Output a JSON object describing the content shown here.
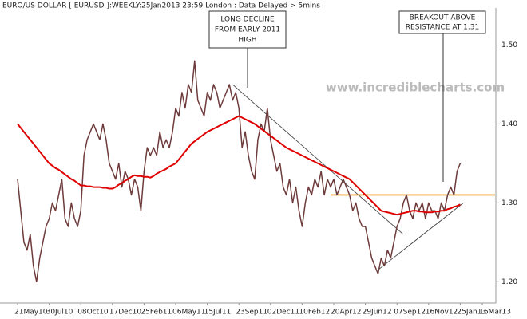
{
  "chart_data": {
    "type": "line",
    "title": "EURO/US DOLLAR [ EURUSD ]:WEEKLY:25Jan2013 23:59 London : Data Delayed > 5mins",
    "watermark": "www.incrediblecharts.com",
    "annotations": [
      {
        "lines": [
          "LONG DECLINE",
          "FROM EARLY 2011",
          "HIGH"
        ]
      },
      {
        "lines": [
          "BREAKOUT ABOVE",
          "RESISTANCE AT 1.31"
        ]
      }
    ],
    "categories": [
      "21May10",
      null,
      null,
      null,
      null,
      null,
      null,
      null,
      null,
      null,
      "30Jul10",
      null,
      null,
      null,
      null,
      null,
      null,
      null,
      null,
      null,
      "08Oct10",
      null,
      null,
      null,
      null,
      null,
      null,
      null,
      null,
      null,
      "17Dec10",
      null,
      null,
      null,
      null,
      null,
      null,
      null,
      null,
      null,
      "25Feb11",
      null,
      null,
      null,
      null,
      null,
      null,
      null,
      null,
      null,
      "06May11",
      null,
      null,
      null,
      null,
      null,
      null,
      null,
      null,
      null,
      "15Jul11",
      null,
      null,
      null,
      null,
      null,
      null,
      null,
      null,
      null,
      "23Sep11",
      null,
      null,
      null,
      null,
      null,
      null,
      null,
      null,
      null,
      "02Dec11",
      null,
      null,
      null,
      null,
      null,
      null,
      null,
      null,
      null,
      "10Feb12",
      null,
      null,
      null,
      null,
      null,
      null,
      null,
      null,
      null,
      "20Apr12",
      null,
      null,
      null,
      null,
      null,
      null,
      null,
      null,
      null,
      "29Jun12",
      null,
      null,
      null,
      null,
      null,
      null,
      null,
      null,
      null,
      "07Sep12",
      null,
      null,
      null,
      null,
      null,
      null,
      null,
      null,
      null,
      "16Nov12",
      null,
      null,
      null,
      null,
      null,
      null,
      null,
      null,
      null,
      "25Jan13",
      null,
      null,
      null,
      null,
      null,
      null,
      "16Mar13"
    ],
    "series": [
      {
        "color": "#6e3b3b",
        "values": [
          1.33,
          1.29,
          1.25,
          1.24,
          1.26,
          1.22,
          1.2,
          1.23,
          1.25,
          1.27,
          1.28,
          1.3,
          1.29,
          1.31,
          1.33,
          1.28,
          1.27,
          1.3,
          1.28,
          1.27,
          1.29,
          1.36,
          1.38,
          1.39,
          1.4,
          1.39,
          1.38,
          1.4,
          1.38,
          1.35,
          1.34,
          1.33,
          1.35,
          1.32,
          1.34,
          1.33,
          1.31,
          1.33,
          1.32,
          1.29,
          1.34,
          1.37,
          1.36,
          1.37,
          1.36,
          1.39,
          1.37,
          1.38,
          1.37,
          1.39,
          1.42,
          1.41,
          1.44,
          1.42,
          1.45,
          1.44,
          1.48,
          1.43,
          1.42,
          1.41,
          1.44,
          1.43,
          1.45,
          1.44,
          1.42,
          1.43,
          1.44,
          1.45,
          1.43,
          1.44,
          1.42,
          1.37,
          1.39,
          1.36,
          1.34,
          1.33,
          1.38,
          1.4,
          1.39,
          1.42,
          1.38,
          1.36,
          1.34,
          1.35,
          1.32,
          1.31,
          1.33,
          1.3,
          1.32,
          1.29,
          1.27,
          1.3,
          1.32,
          1.31,
          1.33,
          1.32,
          1.34,
          1.31,
          1.33,
          1.32,
          1.33,
          1.31,
          1.32,
          1.33,
          1.32,
          1.31,
          1.29,
          1.3,
          1.28,
          1.27,
          1.27,
          1.25,
          1.23,
          1.22,
          1.21,
          1.23,
          1.22,
          1.24,
          1.23,
          1.25,
          1.27,
          1.28,
          1.3,
          1.31,
          1.29,
          1.28,
          1.3,
          1.29,
          1.3,
          1.28,
          1.3,
          1.29,
          1.29,
          1.28,
          1.3,
          1.29,
          1.31,
          1.32,
          1.31,
          1.34,
          1.35,
          null,
          null,
          null,
          null,
          null,
          null,
          null
        ]
      },
      {
        "color": "#e00000",
        "values": [
          1.4,
          1.395,
          1.39,
          1.385,
          1.38,
          1.375,
          1.37,
          1.365,
          1.36,
          1.355,
          1.35,
          1.347,
          1.344,
          1.342,
          1.339,
          1.336,
          1.333,
          1.33,
          1.328,
          1.325,
          1.322,
          1.322,
          1.321,
          1.321,
          1.32,
          1.32,
          1.32,
          1.319,
          1.319,
          1.318,
          1.318,
          1.32,
          1.323,
          1.325,
          1.328,
          1.33,
          1.333,
          1.335,
          1.334,
          1.334,
          1.333,
          1.333,
          1.332,
          1.334,
          1.337,
          1.339,
          1.341,
          1.343,
          1.346,
          1.348,
          1.35,
          1.355,
          1.36,
          1.365,
          1.37,
          1.375,
          1.378,
          1.381,
          1.384,
          1.387,
          1.39,
          1.392,
          1.394,
          1.396,
          1.398,
          1.4,
          1.402,
          1.404,
          1.406,
          1.408,
          1.41,
          1.408,
          1.406,
          1.404,
          1.402,
          1.4,
          1.397,
          1.394,
          1.391,
          1.388,
          1.385,
          1.382,
          1.379,
          1.376,
          1.373,
          1.37,
          1.368,
          1.366,
          1.364,
          1.362,
          1.36,
          1.358,
          1.356,
          1.354,
          1.352,
          1.35,
          1.348,
          1.346,
          1.344,
          1.342,
          1.34,
          1.338,
          1.336,
          1.334,
          1.332,
          1.33,
          1.326,
          1.322,
          1.318,
          1.314,
          1.31,
          1.306,
          1.302,
          1.298,
          1.294,
          1.29,
          1.289,
          1.288,
          1.287,
          1.286,
          1.285,
          1.286,
          1.287,
          1.288,
          1.289,
          1.29,
          1.29,
          1.289,
          1.289,
          1.288,
          1.288,
          1.288,
          1.289,
          1.289,
          1.29,
          1.29,
          1.292,
          1.293,
          1.295,
          1.296,
          1.298,
          null,
          null,
          null,
          null,
          null,
          null,
          null
        ]
      }
    ],
    "trendlines": [
      {
        "color": "#444444",
        "x": [
          68,
          122
        ],
        "values": [
          1.45,
          1.26
        ]
      },
      {
        "color": "#444444",
        "x": [
          114,
          141
        ],
        "values": [
          1.215,
          1.3
        ]
      },
      {
        "color": "#f08c00",
        "x": [
          99,
          151
        ],
        "values": [
          1.31,
          1.31
        ]
      }
    ],
    "ylim": [
      1.175,
      1.545
    ],
    "yticks": [
      {
        "value": 1.2,
        "label": "1.20"
      },
      {
        "value": 1.3,
        "label": "1.30"
      },
      {
        "value": 1.4,
        "label": "1.40"
      },
      {
        "value": 1.5,
        "label": "1.50"
      }
    ]
  }
}
